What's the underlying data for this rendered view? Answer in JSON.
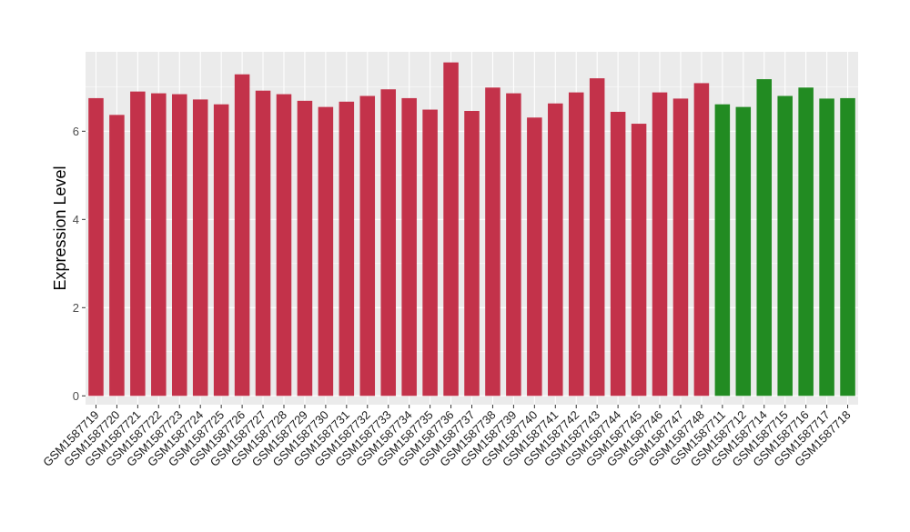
{
  "chart_data": {
    "type": "bar",
    "title": "",
    "xlabel": "",
    "ylabel": "Expression Level",
    "ylim": [
      -0.2,
      7.8
    ],
    "yticks": [
      0,
      2,
      4,
      6
    ],
    "grid": true,
    "colors": {
      "group_1": "#C3324A",
      "group_2": "#228B22",
      "panel": "#EBEBEB",
      "grid": "#FFFFFF"
    },
    "categories": [
      "GSM1587719",
      "GSM1587720",
      "GSM1587721",
      "GSM1587722",
      "GSM1587723",
      "GSM1587724",
      "GSM1587725",
      "GSM1587726",
      "GSM1587727",
      "GSM1587728",
      "GSM1587729",
      "GSM1587730",
      "GSM1587731",
      "GSM1587732",
      "GSM1587733",
      "GSM1587734",
      "GSM1587735",
      "GSM1587736",
      "GSM1587737",
      "GSM1587738",
      "GSM1587739",
      "GSM1587740",
      "GSM1587741",
      "GSM1587742",
      "GSM1587743",
      "GSM1587744",
      "GSM1587745",
      "GSM1587746",
      "GSM1587747",
      "GSM1587748",
      "GSM1587711",
      "GSM1587712",
      "GSM1587714",
      "GSM1587715",
      "GSM1587716",
      "GSM1587717",
      "GSM1587718"
    ],
    "values": [
      6.75,
      6.37,
      6.9,
      6.86,
      6.84,
      6.72,
      6.61,
      7.29,
      6.92,
      6.84,
      6.69,
      6.55,
      6.67,
      6.8,
      6.95,
      6.75,
      6.49,
      7.56,
      6.46,
      6.99,
      6.86,
      6.31,
      6.63,
      6.88,
      7.2,
      6.44,
      6.17,
      6.88,
      6.74,
      7.09,
      6.61,
      6.55,
      7.18,
      6.8,
      6.99,
      6.74,
      6.75
    ],
    "bar_colors": [
      "#C3324A",
      "#C3324A",
      "#C3324A",
      "#C3324A",
      "#C3324A",
      "#C3324A",
      "#C3324A",
      "#C3324A",
      "#C3324A",
      "#C3324A",
      "#C3324A",
      "#C3324A",
      "#C3324A",
      "#C3324A",
      "#C3324A",
      "#C3324A",
      "#C3324A",
      "#C3324A",
      "#C3324A",
      "#C3324A",
      "#C3324A",
      "#C3324A",
      "#C3324A",
      "#C3324A",
      "#C3324A",
      "#C3324A",
      "#C3324A",
      "#C3324A",
      "#C3324A",
      "#C3324A",
      "#228B22",
      "#228B22",
      "#228B22",
      "#228B22",
      "#228B22",
      "#228B22",
      "#228B22"
    ]
  }
}
